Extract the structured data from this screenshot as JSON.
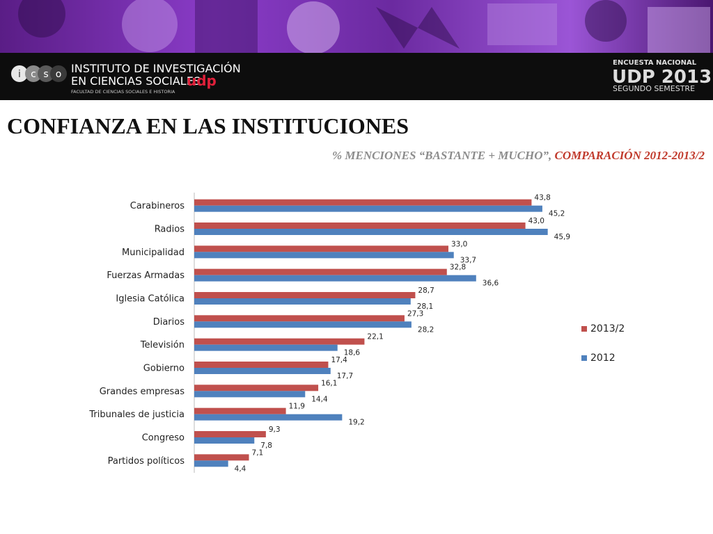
{
  "header": {
    "logo_letters": [
      "i",
      "c",
      "s",
      "o"
    ],
    "institute_line1": "INSTITUTO DE INVESTIGACIÓN",
    "institute_line2": "EN CIENCIAS SOCIALES",
    "udp": "udp",
    "faculty": "FACULTAD DE CIENCIAS SOCIALES E HISTORIA",
    "survey_label": "ENCUESTA NACIONAL",
    "survey_title": "UDP 2013",
    "survey_semester": "SEGUNDO SEMESTRE"
  },
  "chart_data": {
    "type": "bar",
    "orientation": "horizontal",
    "title": "CONFIANZA EN LAS  INSTITUCIONES",
    "subtitle_parts": [
      "% MENCIONES “BASTANTE + MUCHO”, ",
      "COMPARACIÓN 2012-2013/2"
    ],
    "categories": [
      "Carabineros",
      "Radios",
      "Municipalidad",
      "Fuerzas Armadas",
      "Iglesia Católica",
      "Diarios",
      "Televisión",
      "Gobierno",
      "Grandes empresas",
      "Tribunales de justicia",
      "Congreso",
      "Partidos políticos"
    ],
    "series": [
      {
        "name": "2013/2",
        "color": "#c0504d",
        "values": [
          43.8,
          43.0,
          33.0,
          32.8,
          28.7,
          27.3,
          22.1,
          17.4,
          16.1,
          11.9,
          9.3,
          7.1
        ],
        "value_labels": [
          "43,8",
          "43,0",
          "33,0",
          "32,8",
          "28,7",
          "27,3",
          "22,1",
          "17,4",
          "16,1",
          "11,9",
          "9,3",
          "7,1"
        ]
      },
      {
        "name": "2012",
        "color": "#4f81bd",
        "values": [
          45.2,
          45.9,
          33.7,
          36.6,
          28.1,
          28.2,
          18.6,
          17.7,
          14.4,
          19.2,
          7.8,
          4.4
        ],
        "value_labels": [
          "45,2",
          "45,9",
          "33,7",
          "36,6",
          "28,1",
          "28,2",
          "18,6",
          "17,7",
          "14,4",
          "19,2",
          "7,8",
          "4,4"
        ]
      }
    ],
    "xlim": [
      0,
      50
    ],
    "legend_position": "right"
  }
}
